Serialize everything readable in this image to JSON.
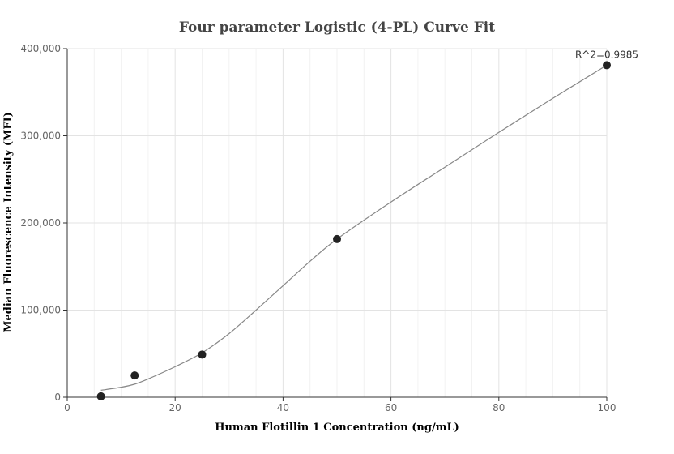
{
  "chart_data": {
    "type": "scatter",
    "title": "Four parameter Logistic (4-PL) Curve Fit",
    "xlabel": "Human Flotillin 1 Concentration (ng/mL)",
    "ylabel": "Median Fluorescence Intensity (MFI)",
    "xlim": [
      0,
      100
    ],
    "ylim": [
      0,
      400000
    ],
    "x_ticks": [
      0,
      20,
      40,
      60,
      80,
      100
    ],
    "x_tick_labels": [
      "0",
      "20",
      "40",
      "60",
      "80",
      "100"
    ],
    "y_ticks": [
      0,
      100000,
      200000,
      300000,
      400000
    ],
    "y_tick_labels": [
      "0",
      "100,000",
      "200,000",
      "300,000",
      "400,000"
    ],
    "grid": true,
    "annotation": "R^2=0.9985",
    "points": {
      "x": [
        6.25,
        12.5,
        25,
        50,
        100
      ],
      "y": [
        1000,
        25000,
        49000,
        181500,
        381000
      ]
    },
    "fit_curve": {
      "x": [
        6.25,
        10,
        12.5,
        15,
        20,
        25,
        30,
        35,
        40,
        45,
        50,
        60,
        70,
        80,
        90,
        100
      ],
      "y": [
        8000,
        11500,
        15000,
        21000,
        35000,
        51000,
        73000,
        100000,
        128000,
        156000,
        181500,
        224000,
        264000,
        304000,
        343000,
        381000
      ]
    },
    "colors": {
      "points": "#222222",
      "fit_line": "#888888"
    }
  }
}
